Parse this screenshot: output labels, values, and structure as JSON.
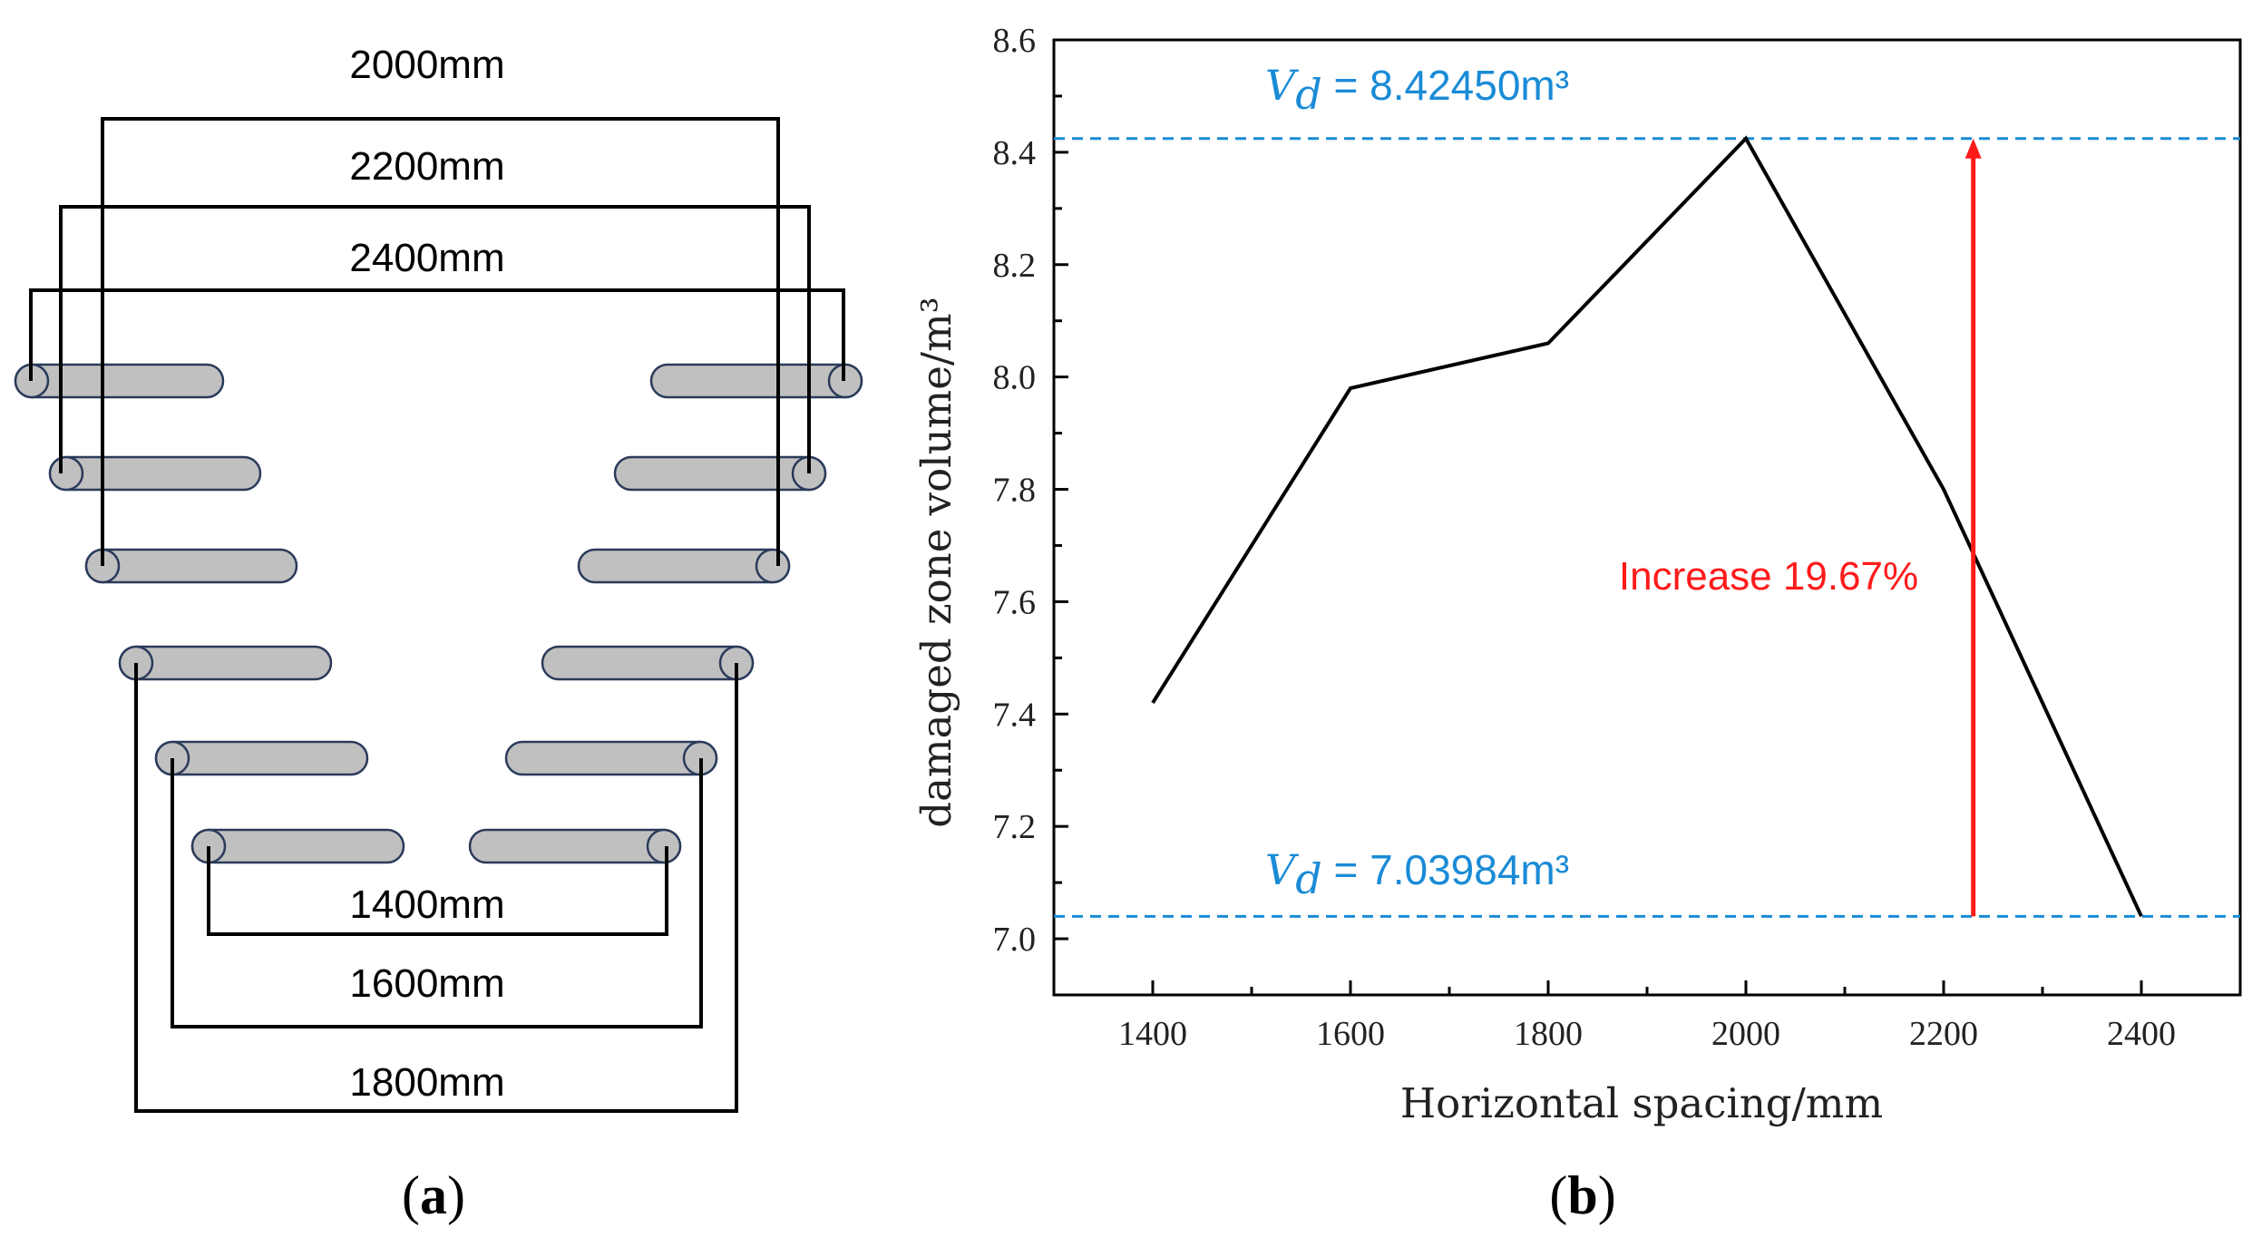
{
  "panel_a": {
    "label_open": "(",
    "label_letter": "a",
    "label_close": ")",
    "outer_spacings": [
      "2000mm",
      "2200mm",
      "2400mm"
    ],
    "inner_spacings": [
      "1400mm",
      "1600mm",
      "1800mm"
    ],
    "line_color": "#000000",
    "rod_fill": "#c0c0c0",
    "rod_stroke": "#2a3a5a"
  },
  "panel_b": {
    "label_open": "(",
    "label_letter": "b",
    "label_close": ")"
  },
  "chart_data": {
    "type": "line",
    "x": [
      1400,
      1600,
      1800,
      2000,
      2200,
      2400
    ],
    "series": [
      {
        "name": "damaged zone volume",
        "values": [
          7.42,
          7.98,
          8.06,
          8.4245,
          7.8,
          7.04
        ],
        "color": "#000000"
      }
    ],
    "xlabel": "Horizontal spacing/mm",
    "ylabel": "damaged zone volume/m³",
    "xlim": [
      1300,
      2500
    ],
    "ylim": [
      6.9,
      8.6
    ],
    "xticks": [
      1400,
      1600,
      1800,
      2000,
      2200,
      2400
    ],
    "xtick_labels": [
      "1400",
      "1600",
      "1800",
      "2000",
      "2200",
      "2400"
    ],
    "yticks": [
      7.0,
      7.2,
      7.4,
      7.6,
      7.8,
      8.0,
      8.2,
      8.4,
      8.6
    ],
    "ytick_labels": [
      "7.0",
      "7.2",
      "7.4",
      "7.6",
      "7.8",
      "8.0",
      "8.2",
      "8.4",
      "8.6"
    ],
    "reference_lines": [
      {
        "y": 8.4245,
        "symbol": "V",
        "subscript": "d",
        "equals": " = ",
        "value_text": "8.42450m³",
        "color": "#1a8bd6"
      },
      {
        "y": 7.03984,
        "symbol": "V",
        "subscript": "d",
        "equals": " = ",
        "value_text": "7.03984m³",
        "color": "#1a8bd6"
      }
    ],
    "arrow": {
      "x": 2230,
      "y_from": 7.03984,
      "y_to": 8.4245,
      "color": "#ff1a1a"
    },
    "annotation": "Increase 19.67%",
    "grid": false
  }
}
